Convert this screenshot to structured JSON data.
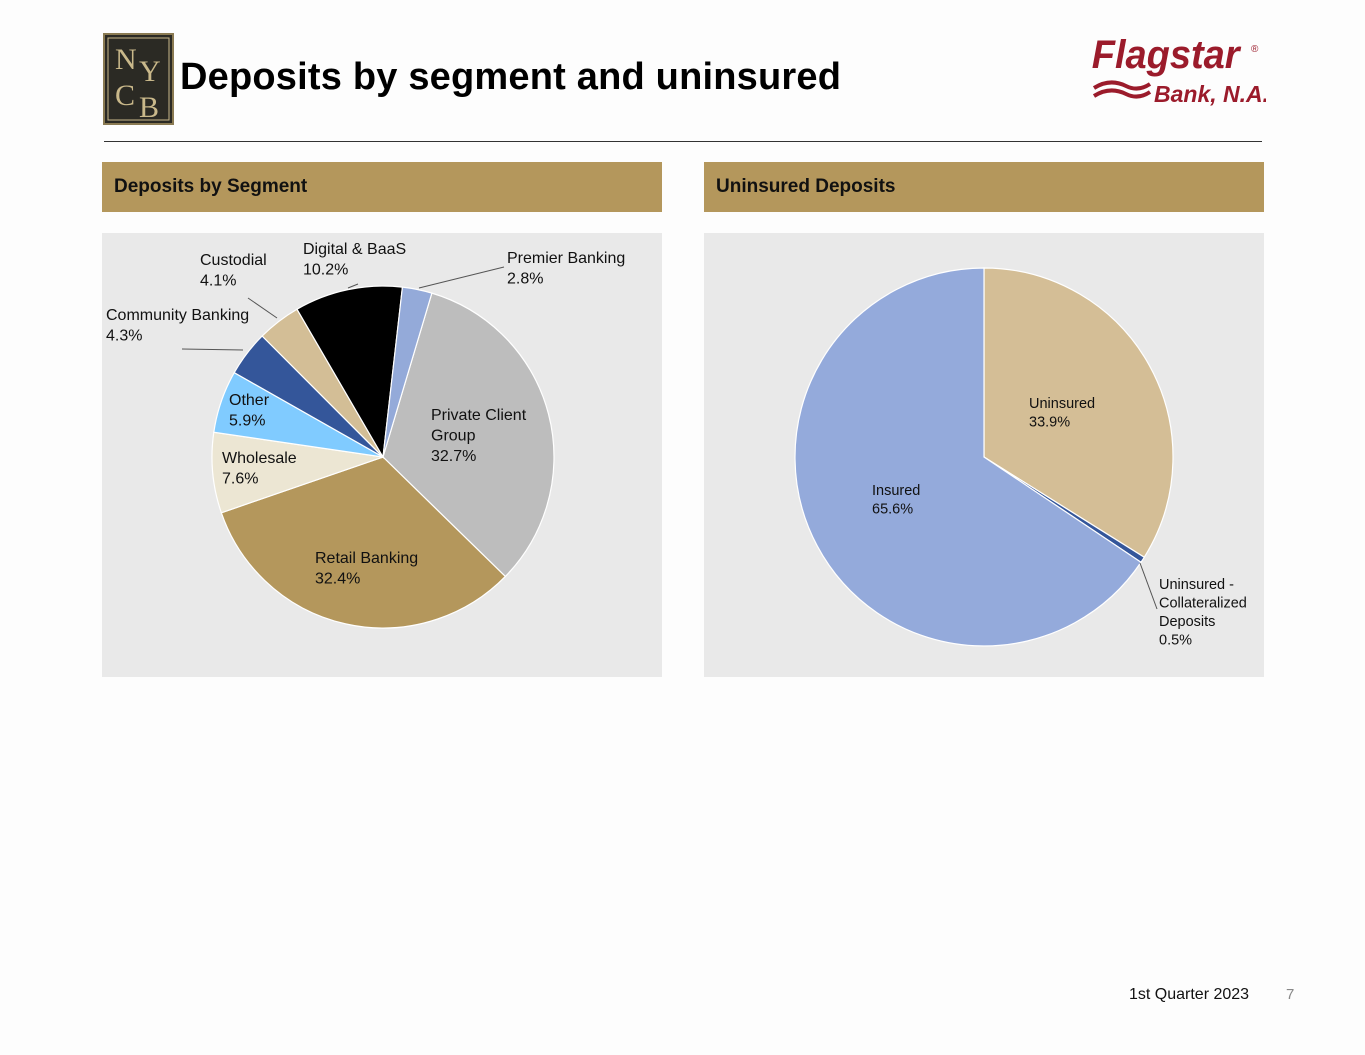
{
  "header": {
    "title": "Deposits by segment and uninsured",
    "logo_left_text": "NYCB",
    "logo_right_text": "Flagstar Bank, N.A."
  },
  "panels": {
    "left_title": "Deposits by Segment",
    "right_title": "Uninsured Deposits"
  },
  "footer": {
    "text": "1st Quarter 2023",
    "page_number": "7"
  },
  "chart_data": [
    {
      "type": "pie",
      "title": "Deposits by Segment",
      "unit": "%",
      "slices": [
        {
          "label": "Private Client Group",
          "value": 32.7,
          "display": "32.7%",
          "color": "#bdbdbd"
        },
        {
          "label": "Retail Banking",
          "value": 32.4,
          "display": "32.4%",
          "color": "#b4975c"
        },
        {
          "label": "Wholesale",
          "value": 7.6,
          "display": "7.6%",
          "color": "#ece6d3"
        },
        {
          "label": "Other",
          "value": 5.9,
          "display": "5.9%",
          "color": "#80cbff"
        },
        {
          "label": "Community Banking",
          "value": 4.3,
          "display": "4.3%",
          "color": "#34569a"
        },
        {
          "label": "Custodial",
          "value": 4.1,
          "display": "4.1%",
          "color": "#d3be96"
        },
        {
          "label": "Digital & BaaS",
          "value": 10.2,
          "display": "10.2%",
          "color": "#000000"
        },
        {
          "label": "Premier Banking",
          "value": 2.8,
          "display": "2.8%",
          "color": "#94aad9"
        }
      ]
    },
    {
      "type": "pie",
      "title": "Uninsured Deposits",
      "unit": "%",
      "slices": [
        {
          "label": "Uninsured",
          "value": 33.9,
          "display": "33.9%",
          "color": "#d4be96"
        },
        {
          "label": "Uninsured - Collateralized Deposits",
          "value": 0.5,
          "display": "0.5%",
          "color": "#34569a"
        },
        {
          "label": "Insured",
          "value": 65.6,
          "display": "65.6%",
          "color": "#94aadb"
        }
      ]
    }
  ]
}
